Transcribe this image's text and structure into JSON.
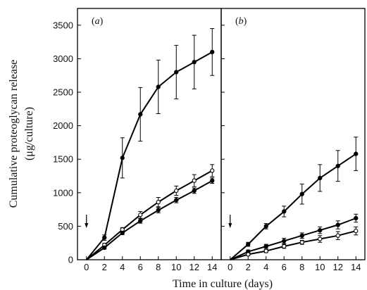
{
  "chart_data": {
    "type": "line",
    "ylabel_line1": "Cumulative proteoglycan release",
    "ylabel_line2": "(μg/culture)",
    "xlabel": "Time in culture (days)",
    "xlim": [
      -1,
      15
    ],
    "ylim": [
      0,
      3750
    ],
    "x_ticks": [
      0,
      2,
      4,
      6,
      8,
      10,
      12,
      14
    ],
    "y_ticks": [
      0,
      500,
      1000,
      1500,
      2000,
      2500,
      3000,
      3500
    ],
    "arrow_day": 0,
    "panels": [
      {
        "label_open": "(",
        "label_letter": "a",
        "label_close": ")",
        "series": [
          {
            "marker": "filled",
            "x": [
              0,
              2,
              4,
              6,
              8,
              10,
              12,
              14
            ],
            "y": [
              0,
              330,
              1520,
              2170,
              2580,
              2800,
              2950,
              3100
            ],
            "err": [
              0,
              40,
              300,
              400,
              400,
              400,
              400,
              350
            ]
          },
          {
            "marker": "open",
            "x": [
              0,
              2,
              4,
              6,
              8,
              10,
              12,
              14
            ],
            "y": [
              0,
              220,
              450,
              670,
              860,
              1030,
              1180,
              1330
            ],
            "err": [
              0,
              25,
              30,
              50,
              70,
              70,
              90,
              90
            ]
          },
          {
            "marker": "filled",
            "x": [
              0,
              2,
              4,
              6,
              8,
              10,
              12,
              14
            ],
            "y": [
              0,
              180,
              400,
              580,
              740,
              890,
              1030,
              1180
            ],
            "err": [
              0,
              20,
              25,
              35,
              40,
              40,
              40,
              40
            ]
          }
        ]
      },
      {
        "label_open": "(",
        "label_letter": "b",
        "label_close": ")",
        "series": [
          {
            "marker": "filled",
            "x": [
              0,
              2,
              4,
              6,
              8,
              10,
              12,
              14
            ],
            "y": [
              0,
              230,
              500,
              720,
              980,
              1220,
              1400,
              1580
            ],
            "err": [
              0,
              30,
              40,
              80,
              150,
              200,
              230,
              250
            ]
          },
          {
            "marker": "filled",
            "x": [
              0,
              2,
              4,
              6,
              8,
              10,
              12,
              14
            ],
            "y": [
              0,
              120,
              200,
              280,
              360,
              440,
              520,
              620
            ],
            "err": [
              0,
              25,
              30,
              40,
              40,
              50,
              60,
              60
            ]
          },
          {
            "marker": "open",
            "x": [
              0,
              2,
              4,
              6,
              8,
              10,
              12,
              14
            ],
            "y": [
              0,
              80,
              130,
              200,
              260,
              310,
              360,
              430
            ],
            "err": [
              0,
              20,
              25,
              30,
              30,
              50,
              60,
              60
            ]
          }
        ]
      }
    ]
  }
}
